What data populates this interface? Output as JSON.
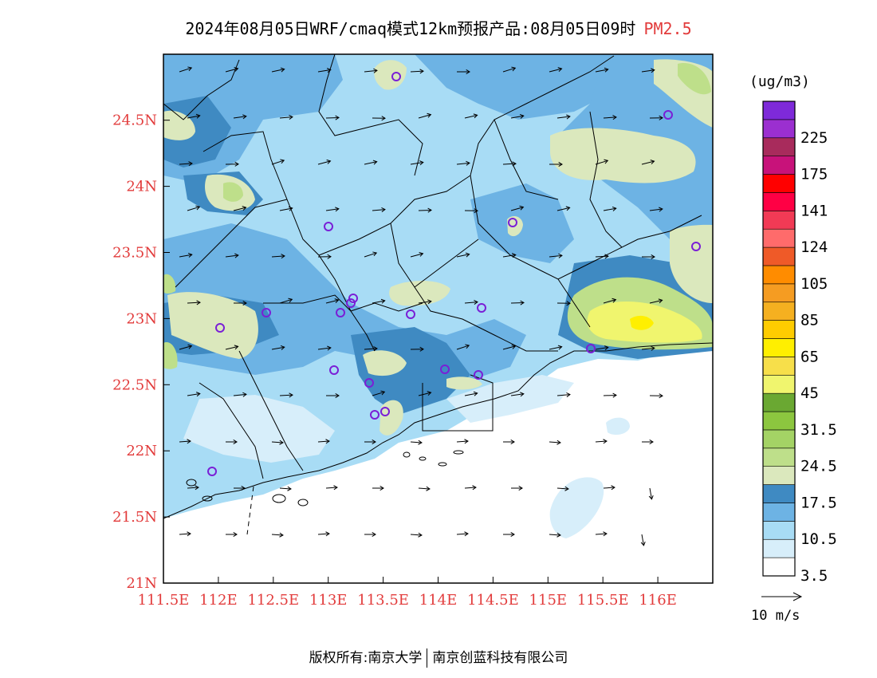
{
  "title": {
    "main": "2024年08月05日WRF/cmaq模式12km预报产品:08月05日09时",
    "pollutant": "PM2.5",
    "pollutant_color": "#e23b3b"
  },
  "map": {
    "lon_ticks": [
      "111.5E",
      "112E",
      "112.5E",
      "113E",
      "113.5E",
      "114E",
      "114.5E",
      "115E",
      "115.5E",
      "116E"
    ],
    "lat_ticks": [
      "21N",
      "21.5N",
      "22N",
      "22.5N",
      "23N",
      "23.5N",
      "24N",
      "24.5N"
    ],
    "tick_color": "#e23b3b",
    "base_fill": "#9fd3f0",
    "sea_fill": "#ffffff",
    "boundary_color": "#000000",
    "site_marker_color": "#7a1fd6",
    "monitoring_sites_count": 20,
    "lon_range": [
      111.5,
      116.5
    ],
    "lat_range": [
      21.0,
      25.0
    ]
  },
  "legend": {
    "unit": "(ug/m3)",
    "bins": [
      {
        "label": "3.5",
        "color": "#ffffff"
      },
      {
        "label": "",
        "color": "#d7eefa"
      },
      {
        "label": "10.5",
        "color": "#a8dcf5"
      },
      {
        "label": "",
        "color": "#6db3e4"
      },
      {
        "label": "17.5",
        "color": "#3f8ac2"
      },
      {
        "label": "",
        "color": "#dbe8bd"
      },
      {
        "label": "24.5",
        "color": "#bedf8a"
      },
      {
        "label": "",
        "color": "#a4d365"
      },
      {
        "label": "31.5",
        "color": "#8cc63f"
      },
      {
        "label": "",
        "color": "#6aa832"
      },
      {
        "label": "45",
        "color": "#f0f56e"
      },
      {
        "label": "",
        "color": "#f7df4a"
      },
      {
        "label": "65",
        "color": "#ffef00"
      },
      {
        "label": "",
        "color": "#ffcc00"
      },
      {
        "label": "85",
        "color": "#f5b020"
      },
      {
        "label": "",
        "color": "#f59c22"
      },
      {
        "label": "105",
        "color": "#ff8c00"
      },
      {
        "label": "",
        "color": "#ef5a28"
      },
      {
        "label": "124",
        "color": "#ff6b6b"
      },
      {
        "label": "",
        "color": "#f23a55"
      },
      {
        "label": "141",
        "color": "#ff0044"
      },
      {
        "label": "",
        "color": "#ff0000"
      },
      {
        "label": "175",
        "color": "#c8127a"
      },
      {
        "label": "",
        "color": "#a82b5c"
      },
      {
        "label": "225",
        "color": "#9b2fd0"
      },
      {
        "label": "",
        "color": "#7e2ad9"
      }
    ]
  },
  "wind_reference": {
    "label": "10 m/s"
  },
  "footer": {
    "left": "版权所有:南京大学",
    "right": "南京创蓝科技有限公司"
  }
}
